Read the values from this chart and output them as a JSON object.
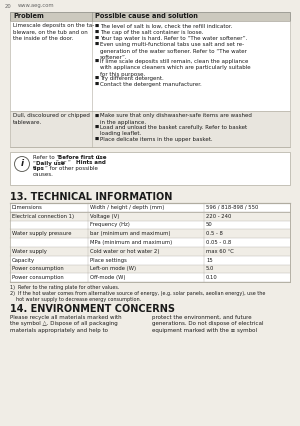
{
  "page_num": "20",
  "website": "www.aeg.com",
  "bg_color": "#f0ede6",
  "white": "#ffffff",
  "black": "#000000",
  "gray_header": "#ccc9be",
  "gray_row": "#e8e5de",
  "text_color": "#1a1a1a",
  "header_line_color": "#888880",
  "cell_line_color": "#b0aca0",
  "problem_header": [
    "Problem",
    "Possible cause and solution"
  ],
  "prob1_text": "Limescale deposits on the ta-\nbleware, on the tub and on\nthe inside of the door.",
  "prob1_solutions": [
    "The level of salt is low, check the refill indicator.",
    "The cap of the salt container is loose.",
    "Your tap water is hard. Refer to “The water softener”.",
    "Even using multi-functional tabs use salt and set re-\ngeneration of the water softener. Refer to “The water\nsoftener”.",
    "If lime scale deposits still remain, clean the appliance\nwith appliance cleaners which are particularly suitable\nfor this purpose.",
    "Try different detergent.",
    "Contact the detergent manufacturer."
  ],
  "prob2_text": "Dull, discoloured or chipped\ntableware.",
  "prob2_solutions": [
    "Make sure that only dishwasher-safe items are washed\nin the appliance.",
    "Load and unload the basket carefully. Refer to basket\nloading leaflet.",
    "Place delicate items in the upper basket."
  ],
  "info_text_pre": "Refer to “",
  "info_bold1": "Before first use",
  "info_text_mid1": "”,\n“",
  "info_bold2": "Daily use",
  "info_text_mid2": "” or “",
  "info_bold3": "Hints and\ntips",
  "info_text_post": "” for other possible\ncauses.",
  "section13": "13. TECHNICAL INFORMATION",
  "tech_rows": [
    [
      "Dimensions",
      "Width / height / depth (mm)",
      "596 / 818-898 / 550"
    ],
    [
      "Electrical connection 1)",
      "Voltage (V)",
      "220 - 240"
    ],
    [
      "",
      "Frequency (Hz)",
      "50"
    ],
    [
      "Water supply pressure",
      "bar (minimum and maximum)",
      "0.5 - 8"
    ],
    [
      "",
      "MPa (minimum and maximum)",
      "0.05 - 0.8"
    ],
    [
      "Water supply",
      "Cold water or hot water 2)",
      "max 60 °C"
    ],
    [
      "Capacity",
      "Place settings",
      "15"
    ],
    [
      "Power consumption",
      "Left-on mode (W)",
      "5.0"
    ],
    [
      "Power consumption",
      "Off-mode (W)",
      "0.10"
    ]
  ],
  "footnote1": "1)  Refer to the rating plate for other values.",
  "footnote2": "2)  If the hot water comes from alternative source of energy, (e.g. solar panels, aeolian energy), use the\n    hot water supply to decrease energy consumption.",
  "section14": "14. ENVIRONMENT CONCERNS",
  "env_left": "Please recycle all materials marked with\nthe symbol △. Dispose of all packaging\nmaterials appropriately and help to",
  "env_right": "protect the environment, and future\ngenerations. Do not dispose of electrical\nequipment marked with the ≡ symbol"
}
